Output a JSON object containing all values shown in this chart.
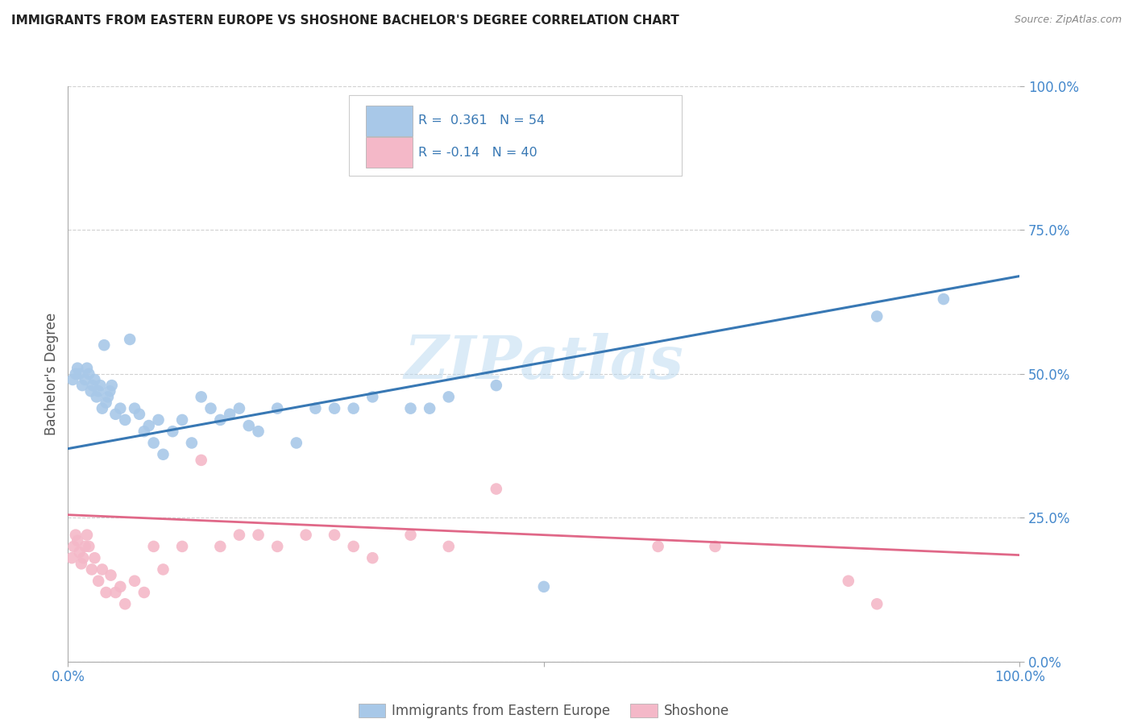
{
  "title": "IMMIGRANTS FROM EASTERN EUROPE VS SHOSHONE BACHELOR'S DEGREE CORRELATION CHART",
  "source_text": "Source: ZipAtlas.com",
  "ylabel": "Bachelor's Degree",
  "xlim": [
    0.0,
    1.0
  ],
  "ylim": [
    0.0,
    1.0
  ],
  "xtick_labels": [
    "0.0%",
    "100.0%"
  ],
  "ytick_labels": [
    "0.0%",
    "25.0%",
    "50.0%",
    "75.0%",
    "100.0%"
  ],
  "ytick_positions": [
    0.0,
    0.25,
    0.5,
    0.75,
    1.0
  ],
  "watermark": "ZIPatlas",
  "blue_R": 0.361,
  "blue_N": 54,
  "pink_R": -0.14,
  "pink_N": 40,
  "blue_color": "#a8c8e8",
  "pink_color": "#f4b8c8",
  "blue_line_color": "#3878b4",
  "pink_line_color": "#e06888",
  "background_color": "#ffffff",
  "grid_color": "#cccccc",
  "title_color": "#222222",
  "axis_label_color": "#4488cc",
  "legend_text_color": "#3878b4",
  "blue_scatter_x": [
    0.005,
    0.008,
    0.01,
    0.012,
    0.015,
    0.018,
    0.02,
    0.022,
    0.024,
    0.026,
    0.028,
    0.03,
    0.032,
    0.034,
    0.036,
    0.038,
    0.04,
    0.042,
    0.044,
    0.046,
    0.05,
    0.055,
    0.06,
    0.065,
    0.07,
    0.075,
    0.08,
    0.085,
    0.09,
    0.095,
    0.1,
    0.11,
    0.12,
    0.13,
    0.14,
    0.15,
    0.16,
    0.17,
    0.18,
    0.19,
    0.2,
    0.22,
    0.24,
    0.26,
    0.28,
    0.3,
    0.32,
    0.36,
    0.38,
    0.4,
    0.45,
    0.5,
    0.85,
    0.92
  ],
  "blue_scatter_y": [
    0.49,
    0.5,
    0.51,
    0.5,
    0.48,
    0.49,
    0.51,
    0.5,
    0.47,
    0.48,
    0.49,
    0.46,
    0.47,
    0.48,
    0.44,
    0.55,
    0.45,
    0.46,
    0.47,
    0.48,
    0.43,
    0.44,
    0.42,
    0.56,
    0.44,
    0.43,
    0.4,
    0.41,
    0.38,
    0.42,
    0.36,
    0.4,
    0.42,
    0.38,
    0.46,
    0.44,
    0.42,
    0.43,
    0.44,
    0.41,
    0.4,
    0.44,
    0.38,
    0.44,
    0.44,
    0.44,
    0.46,
    0.44,
    0.44,
    0.46,
    0.48,
    0.13,
    0.6,
    0.63
  ],
  "pink_scatter_x": [
    0.004,
    0.006,
    0.008,
    0.01,
    0.012,
    0.014,
    0.016,
    0.018,
    0.02,
    0.022,
    0.025,
    0.028,
    0.032,
    0.036,
    0.04,
    0.045,
    0.05,
    0.055,
    0.06,
    0.07,
    0.08,
    0.09,
    0.1,
    0.12,
    0.14,
    0.16,
    0.18,
    0.2,
    0.22,
    0.25,
    0.28,
    0.3,
    0.32,
    0.36,
    0.4,
    0.45,
    0.62,
    0.68,
    0.82,
    0.85
  ],
  "pink_scatter_y": [
    0.18,
    0.2,
    0.22,
    0.21,
    0.19,
    0.17,
    0.18,
    0.2,
    0.22,
    0.2,
    0.16,
    0.18,
    0.14,
    0.16,
    0.12,
    0.15,
    0.12,
    0.13,
    0.1,
    0.14,
    0.12,
    0.2,
    0.16,
    0.2,
    0.35,
    0.2,
    0.22,
    0.22,
    0.2,
    0.22,
    0.22,
    0.2,
    0.18,
    0.22,
    0.2,
    0.3,
    0.2,
    0.2,
    0.14,
    0.1
  ],
  "blue_line_y_start": 0.37,
  "blue_line_y_end": 0.67,
  "pink_line_y_start": 0.255,
  "pink_line_y_end": 0.185
}
